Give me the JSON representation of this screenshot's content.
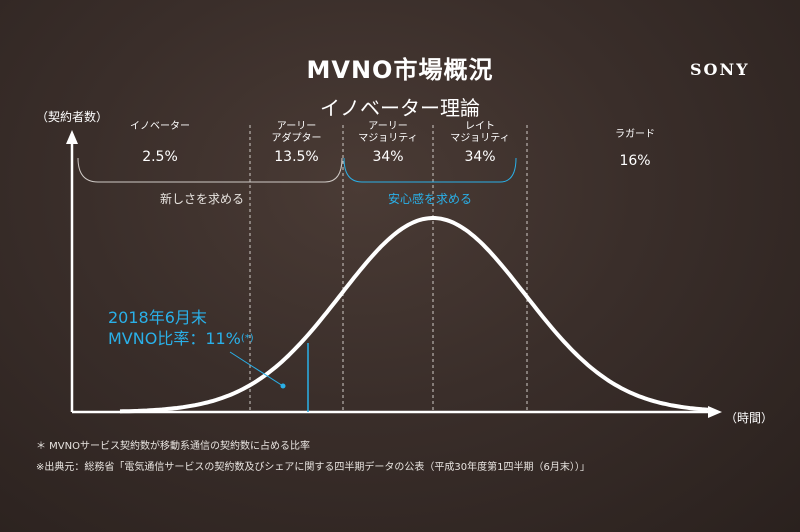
{
  "slide": {
    "title": "MVNO市場概況",
    "brand": "SONY",
    "subtitle": "イノベーター理論"
  },
  "chart_data": {
    "type": "area",
    "ylabel": "（契約者数）",
    "xlabel": "（時間）",
    "segments": [
      {
        "name": "イノベーター",
        "value": "2.5%"
      },
      {
        "name": "アーリー\nアダプター",
        "value": "13.5%"
      },
      {
        "name": "アーリー\nマジョリティ",
        "value": "34%"
      },
      {
        "name": "レイト\nマジョリティ",
        "value": "34%"
      },
      {
        "name": "ラガード",
        "value": "16%"
      }
    ],
    "groups": [
      {
        "label": "新しさを求める",
        "color": "#e8e4e0"
      },
      {
        "label": "安心感を求める",
        "color": "#2ab0e8"
      }
    ],
    "marker": {
      "line1": "2018年6月末",
      "line2": "MVNO比率：11%",
      "suffix": "(*)",
      "value_pct": 11,
      "color": "#2ab0e8"
    }
  },
  "footnotes": {
    "note1": "＊ MVNOサービス契約数が移動系通信の契約数に占める比率",
    "note2": "※出典元：総務省「電気通信サービスの契約数及びシェアに関する四半期データの公表（平成30年度第1四半期（6月末））」"
  }
}
